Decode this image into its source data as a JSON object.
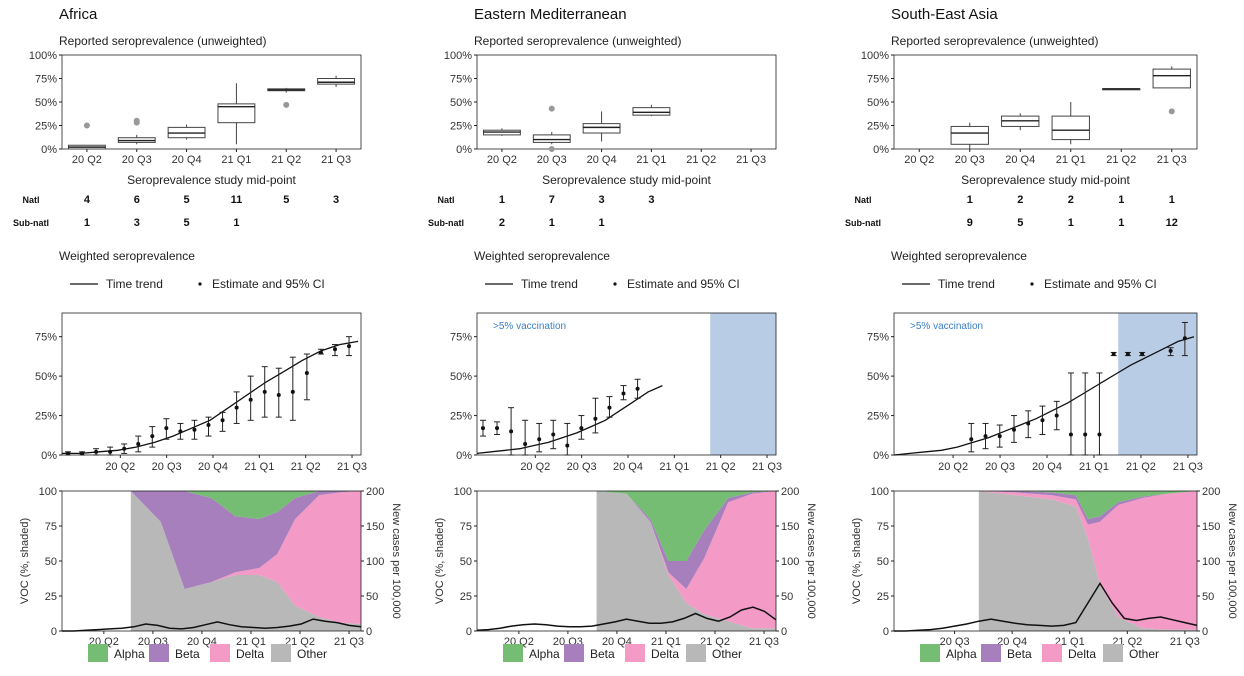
{
  "labels": {
    "reported_title": "Reported seroprevalence (unweighted)",
    "midpoint_xlabel": "Seroprevalence study mid-point",
    "natl_label": "Natl",
    "subnatl_label": "Sub-natl",
    "weighted_title": "Weighted seroprevalence",
    "time_trend": "Time trend",
    "estimate_ci": "Estimate and 95% CI",
    "vaccination_note": ">5% vaccination",
    "voc_ylabel": "VOC (%, shaded)",
    "cases_ylabel": "New cases per 100,000"
  },
  "colors": {
    "Alpha": "#74bd73",
    "Beta": "#a77fbd",
    "Delta": "#f39ac7",
    "Other": "#b8b8b8",
    "vaccination": "#b8cce6",
    "vac_text": "#3a7fc6"
  },
  "chart_data": [
    {
      "region": "Africa",
      "reported": {
        "type": "box",
        "categories": [
          "20 Q2",
          "20 Q3",
          "20 Q4",
          "21 Q1",
          "21 Q2",
          "21 Q3"
        ],
        "yticks": [
          "0%",
          "25%",
          "50%",
          "75%",
          "100%"
        ],
        "ylim": [
          0,
          100
        ],
        "boxes": [
          {
            "min": 0,
            "q1": 0,
            "median": 2,
            "q3": 4,
            "max": 4,
            "outliers": [
              25
            ]
          },
          {
            "min": 5,
            "q1": 7,
            "median": 9,
            "q3": 12,
            "max": 15,
            "outliers": [
              28,
              30
            ]
          },
          {
            "min": 10,
            "q1": 12,
            "median": 17,
            "q3": 23,
            "max": 26,
            "outliers": []
          },
          {
            "min": 5,
            "q1": 28,
            "median": 45,
            "q3": 48,
            "max": 70,
            "outliers": []
          },
          {
            "min": 60,
            "q1": 62,
            "median": 63,
            "q3": 64,
            "max": 65,
            "outliers": [
              47
            ]
          },
          {
            "min": 66,
            "q1": 69,
            "median": 71,
            "q3": 75,
            "max": 78,
            "outliers": []
          }
        ],
        "natl": [
          "4",
          "6",
          "5",
          "11",
          "5",
          "3"
        ],
        "subnatl": [
          "1",
          "3",
          "5",
          "1",
          "",
          ""
        ]
      },
      "weighted": {
        "type": "line",
        "ticks": [
          "20 Q2",
          "20 Q3",
          "20 Q4",
          "21 Q1",
          "21 Q2",
          "21 Q3"
        ],
        "yticks": [
          "0%",
          "25%",
          "50%",
          "75%"
        ],
        "ylim": [
          0,
          90
        ],
        "vaccination_from": null,
        "trend": [
          1,
          1,
          2,
          3,
          5,
          8,
          12,
          17,
          22,
          30,
          38,
          46,
          53,
          60,
          66,
          70,
          72
        ],
        "estimates": [
          {
            "t": 0,
            "y": 1,
            "lo": 0,
            "hi": 2
          },
          {
            "t": 1,
            "y": 1,
            "lo": 0,
            "hi": 2
          },
          {
            "t": 2,
            "y": 2,
            "lo": 0,
            "hi": 4
          },
          {
            "t": 3,
            "y": 2,
            "lo": 0,
            "hi": 5
          },
          {
            "t": 4,
            "y": 4,
            "lo": 1,
            "hi": 7
          },
          {
            "t": 5,
            "y": 7,
            "lo": 2,
            "hi": 12
          },
          {
            "t": 6,
            "y": 12,
            "lo": 5,
            "hi": 18
          },
          {
            "t": 7,
            "y": 17,
            "lo": 10,
            "hi": 23
          },
          {
            "t": 8,
            "y": 15,
            "lo": 10,
            "hi": 20
          },
          {
            "t": 9,
            "y": 16,
            "lo": 10,
            "hi": 22
          },
          {
            "t": 10,
            "y": 19,
            "lo": 12,
            "hi": 24
          },
          {
            "t": 11,
            "y": 22,
            "lo": 15,
            "hi": 27
          },
          {
            "t": 12,
            "y": 30,
            "lo": 20,
            "hi": 40
          },
          {
            "t": 13,
            "y": 35,
            "lo": 22,
            "hi": 50
          },
          {
            "t": 14,
            "y": 40,
            "lo": 24,
            "hi": 56
          },
          {
            "t": 15,
            "y": 38,
            "lo": 24,
            "hi": 55
          },
          {
            "t": 16,
            "y": 40,
            "lo": 22,
            "hi": 62
          },
          {
            "t": 17,
            "y": 52,
            "lo": 35,
            "hi": 64
          },
          {
            "t": 18,
            "y": 65,
            "lo": 64,
            "hi": 67
          },
          {
            "t": 19,
            "y": 67,
            "lo": 63,
            "hi": 70
          },
          {
            "t": 20,
            "y": 69,
            "lo": 63,
            "hi": 75
          }
        ]
      },
      "voc": {
        "type": "area",
        "ticks": [
          "20 Q2",
          "20 Q3",
          "20 Q4",
          "21 Q1",
          "21 Q2",
          "21 Q3"
        ],
        "yticks_left": [
          "0",
          "25",
          "50",
          "75",
          "100"
        ],
        "yticks_right": [
          "0",
          "50",
          "100",
          "150",
          "200"
        ],
        "start": 0.23,
        "points": [
          {
            "x": 0.23,
            "Alpha": 0,
            "Beta": 0,
            "Delta": 0,
            "Other": 100
          },
          {
            "x": 0.33,
            "Alpha": 0,
            "Beta": 22,
            "Delta": 0,
            "Other": 78
          },
          {
            "x": 0.41,
            "Alpha": 0,
            "Beta": 70,
            "Delta": 0,
            "Other": 30
          },
          {
            "x": 0.5,
            "Alpha": 5,
            "Beta": 60,
            "Delta": 0,
            "Other": 35
          },
          {
            "x": 0.58,
            "Alpha": 18,
            "Beta": 40,
            "Delta": 2,
            "Other": 40
          },
          {
            "x": 0.66,
            "Alpha": 20,
            "Beta": 35,
            "Delta": 5,
            "Other": 40
          },
          {
            "x": 0.72,
            "Alpha": 15,
            "Beta": 30,
            "Delta": 20,
            "Other": 35
          },
          {
            "x": 0.78,
            "Alpha": 5,
            "Beta": 15,
            "Delta": 62,
            "Other": 18
          },
          {
            "x": 0.86,
            "Alpha": 0,
            "Beta": 3,
            "Delta": 87,
            "Other": 10
          },
          {
            "x": 0.93,
            "Alpha": 0,
            "Beta": 1,
            "Delta": 93,
            "Other": 6
          },
          {
            "x": 1.0,
            "Alpha": 0,
            "Beta": 0,
            "Delta": 95,
            "Other": 5
          }
        ],
        "cases": [
          0,
          0,
          1,
          2,
          3,
          4,
          6,
          10,
          8,
          4,
          3,
          5,
          9,
          13,
          9,
          6,
          5,
          4,
          5,
          7,
          10,
          17,
          14,
          12,
          8,
          6
        ]
      }
    },
    {
      "region": "Eastern Mediterranean",
      "reported": {
        "type": "box",
        "categories": [
          "20 Q2",
          "20 Q3",
          "20 Q4",
          "21 Q1",
          "21 Q2",
          "21 Q3"
        ],
        "yticks": [
          "0%",
          "25%",
          "50%",
          "75%",
          "100%"
        ],
        "ylim": [
          0,
          100
        ],
        "boxes": [
          {
            "min": 14,
            "q1": 15,
            "median": 18,
            "q3": 20,
            "max": 22,
            "outliers": []
          },
          {
            "min": 5,
            "q1": 7,
            "median": 10,
            "q3": 15,
            "max": 18,
            "outliers": [
              43,
              0
            ]
          },
          {
            "min": 8,
            "q1": 17,
            "median": 23,
            "q3": 27,
            "max": 40,
            "outliers": []
          },
          {
            "min": 35,
            "q1": 36,
            "median": 39,
            "q3": 44,
            "max": 47,
            "outliers": []
          },
          null,
          null
        ],
        "natl": [
          "1",
          "7",
          "3",
          "3",
          "",
          ""
        ],
        "subnatl": [
          "2",
          "1",
          "1",
          "",
          "",
          ""
        ]
      },
      "weighted": {
        "type": "line",
        "ticks": [
          "20 Q2",
          "20 Q3",
          "20 Q4",
          "21 Q1",
          "21 Q2",
          "21 Q3"
        ],
        "yticks": [
          "0%",
          "25%",
          "50%",
          "75%"
        ],
        "ylim": [
          0,
          90
        ],
        "vaccination_from": 0.78,
        "trend_until": 0.62,
        "trend": [
          1,
          2,
          3,
          4,
          6,
          8,
          11,
          14,
          18,
          22,
          28,
          34,
          40,
          44
        ],
        "estimates": [
          {
            "t": 0,
            "y": 17,
            "lo": 12,
            "hi": 22
          },
          {
            "t": 1,
            "y": 17,
            "lo": 13,
            "hi": 21
          },
          {
            "t": 2,
            "y": 15,
            "lo": 0,
            "hi": 30
          },
          {
            "t": 3,
            "y": 7,
            "lo": 0,
            "hi": 22
          },
          {
            "t": 4,
            "y": 10,
            "lo": 2,
            "hi": 20
          },
          {
            "t": 5,
            "y": 13,
            "lo": 4,
            "hi": 22
          },
          {
            "t": 6,
            "y": 6,
            "lo": 0,
            "hi": 20
          },
          {
            "t": 7,
            "y": 17,
            "lo": 10,
            "hi": 25
          },
          {
            "t": 8,
            "y": 23,
            "lo": 14,
            "hi": 36
          },
          {
            "t": 9,
            "y": 30,
            "lo": 24,
            "hi": 37
          },
          {
            "t": 10,
            "y": 39,
            "lo": 35,
            "hi": 44
          },
          {
            "t": 11,
            "y": 42,
            "lo": 36,
            "hi": 48
          }
        ]
      },
      "voc": {
        "type": "area",
        "ticks": [
          "20 Q2",
          "20 Q3",
          "20 Q4",
          "21 Q1",
          "21 Q2",
          "21 Q3"
        ],
        "yticks_left": [
          "0",
          "25",
          "50",
          "75",
          "100"
        ],
        "yticks_right": [
          "0",
          "50",
          "100",
          "150",
          "200"
        ],
        "start": 0.4,
        "points": [
          {
            "x": 0.4,
            "Alpha": 0,
            "Beta": 0,
            "Delta": 0,
            "Other": 100
          },
          {
            "x": 0.5,
            "Alpha": 2,
            "Beta": 0,
            "Delta": 0,
            "Other": 98
          },
          {
            "x": 0.58,
            "Alpha": 20,
            "Beta": 2,
            "Delta": 0,
            "Other": 78
          },
          {
            "x": 0.64,
            "Alpha": 50,
            "Beta": 8,
            "Delta": 2,
            "Other": 40
          },
          {
            "x": 0.7,
            "Alpha": 50,
            "Beta": 20,
            "Delta": 10,
            "Other": 20
          },
          {
            "x": 0.76,
            "Alpha": 28,
            "Beta": 20,
            "Delta": 40,
            "Other": 12
          },
          {
            "x": 0.84,
            "Alpha": 5,
            "Beta": 3,
            "Delta": 85,
            "Other": 7
          },
          {
            "x": 0.92,
            "Alpha": 1,
            "Beta": 1,
            "Delta": 96,
            "Other": 2
          },
          {
            "x": 1.0,
            "Alpha": 0,
            "Beta": 0,
            "Delta": 98,
            "Other": 2
          }
        ],
        "cases": [
          1,
          2,
          4,
          7,
          9,
          10,
          9,
          7,
          6,
          6,
          7,
          10,
          13,
          17,
          14,
          11,
          11,
          13,
          18,
          25,
          18,
          14,
          20,
          30,
          34,
          28,
          16
        ]
      }
    },
    {
      "region": "South-East Asia",
      "reported": {
        "type": "box",
        "categories": [
          "20 Q2",
          "20 Q3",
          "20 Q4",
          "21 Q1",
          "21 Q2",
          "21 Q3"
        ],
        "yticks": [
          "0%",
          "25%",
          "50%",
          "75%",
          "100%"
        ],
        "ylim": [
          0,
          100
        ],
        "boxes": [
          null,
          {
            "min": 0,
            "q1": 5,
            "median": 17,
            "q3": 24,
            "max": 28,
            "outliers": []
          },
          {
            "min": 20,
            "q1": 24,
            "median": 30,
            "q3": 35,
            "max": 38,
            "outliers": []
          },
          {
            "min": 5,
            "q1": 10,
            "median": 20,
            "q3": 35,
            "max": 50,
            "outliers": []
          },
          {
            "min": 64,
            "q1": 64,
            "median": 64,
            "q3": 64,
            "max": 64,
            "outliers": []
          },
          {
            "min": 65,
            "q1": 65,
            "median": 78,
            "q3": 85,
            "max": 88,
            "outliers": [
              40
            ]
          }
        ],
        "natl": [
          "",
          "1",
          "2",
          "2",
          "1",
          "1"
        ],
        "subnatl": [
          "",
          "9",
          "5",
          "1",
          "1",
          "12"
        ]
      },
      "weighted": {
        "type": "line",
        "ticks": [
          "20 Q2",
          "20 Q3",
          "20 Q4",
          "21 Q1",
          "21 Q2",
          "21 Q3"
        ],
        "yticks": [
          "0%",
          "25%",
          "50%",
          "75%"
        ],
        "ylim": [
          0,
          90
        ],
        "vaccination_from": 0.74,
        "trend": [
          0,
          1,
          2,
          3,
          5,
          8,
          11,
          15,
          19,
          23,
          28,
          33,
          39,
          45,
          51,
          57,
          62,
          67,
          72,
          75
        ],
        "estimates": [
          {
            "t": 5,
            "y": 10,
            "lo": 2,
            "hi": 20
          },
          {
            "t": 6,
            "y": 12,
            "lo": 4,
            "hi": 20
          },
          {
            "t": 7,
            "y": 12,
            "lo": 5,
            "hi": 19
          },
          {
            "t": 8,
            "y": 16,
            "lo": 8,
            "hi": 25
          },
          {
            "t": 9,
            "y": 20,
            "lo": 11,
            "hi": 28
          },
          {
            "t": 10,
            "y": 22,
            "lo": 13,
            "hi": 31
          },
          {
            "t": 11,
            "y": 25,
            "lo": 16,
            "hi": 34
          },
          {
            "t": 12,
            "y": 13,
            "lo": 0,
            "hi": 52
          },
          {
            "t": 13,
            "y": 13,
            "lo": 0,
            "hi": 52
          },
          {
            "t": 14,
            "y": 13,
            "lo": 0,
            "hi": 52
          },
          {
            "t": 15,
            "y": 64,
            "lo": 63,
            "hi": 65
          },
          {
            "t": 16,
            "y": 64,
            "lo": 63,
            "hi": 65
          },
          {
            "t": 17,
            "y": 64,
            "lo": 63,
            "hi": 65
          },
          {
            "t": 19,
            "y": 66,
            "lo": 63,
            "hi": 68
          },
          {
            "t": 20,
            "y": 74,
            "lo": 63,
            "hi": 84
          }
        ]
      },
      "voc": {
        "type": "area",
        "ticks": [
          "20 Q3",
          "20 Q4",
          "21 Q1",
          "21 Q2",
          "21 Q3"
        ],
        "yticks_left": [
          "0",
          "25",
          "50",
          "75",
          "100"
        ],
        "yticks_right": [
          "0",
          "50",
          "100",
          "150",
          "200"
        ],
        "start": 0.28,
        "points": [
          {
            "x": 0.28,
            "Alpha": 0,
            "Beta": 0,
            "Delta": 0,
            "Other": 100
          },
          {
            "x": 0.4,
            "Alpha": 0,
            "Beta": 1,
            "Delta": 2,
            "Other": 97
          },
          {
            "x": 0.52,
            "Alpha": 1,
            "Beta": 2,
            "Delta": 3,
            "Other": 94
          },
          {
            "x": 0.6,
            "Alpha": 3,
            "Beta": 3,
            "Delta": 5,
            "Other": 89
          },
          {
            "x": 0.64,
            "Alpha": 20,
            "Beta": 4,
            "Delta": 10,
            "Other": 66
          },
          {
            "x": 0.68,
            "Alpha": 18,
            "Beta": 4,
            "Delta": 45,
            "Other": 33
          },
          {
            "x": 0.74,
            "Alpha": 8,
            "Beta": 2,
            "Delta": 80,
            "Other": 10
          },
          {
            "x": 0.82,
            "Alpha": 4,
            "Beta": 1,
            "Delta": 93,
            "Other": 2
          },
          {
            "x": 0.9,
            "Alpha": 2,
            "Beta": 0,
            "Delta": 97,
            "Other": 1
          },
          {
            "x": 1.0,
            "Alpha": 0,
            "Beta": 0,
            "Delta": 99,
            "Other": 1
          }
        ],
        "cases": [
          0,
          0,
          1,
          2,
          4,
          7,
          10,
          14,
          17,
          14,
          11,
          9,
          8,
          7,
          8,
          12,
          40,
          68,
          40,
          18,
          15,
          18,
          20,
          16,
          12,
          8
        ]
      }
    }
  ],
  "legend_variants": [
    "Alpha",
    "Beta",
    "Delta",
    "Other"
  ]
}
